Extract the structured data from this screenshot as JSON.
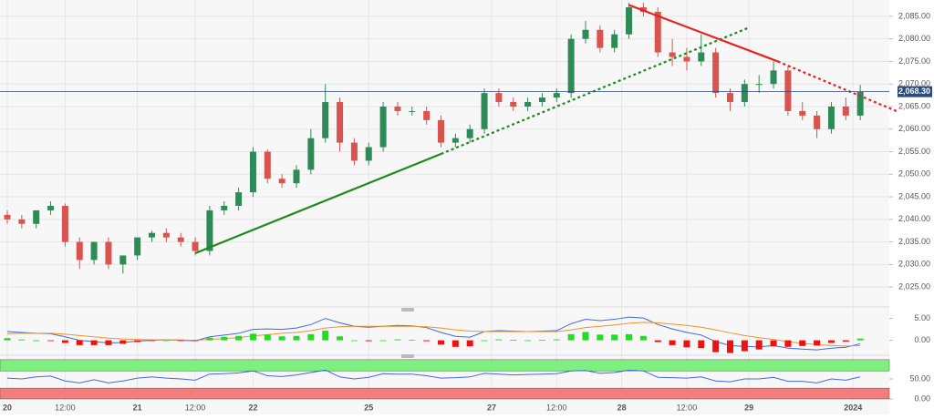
{
  "chart_data": [
    {
      "type": "candlestick",
      "open": [
        2041,
        2040,
        2039,
        2042,
        2043,
        2035,
        2031,
        2035,
        2030,
        2032,
        2036,
        2037,
        2036,
        2035,
        2033,
        2042,
        2043,
        2046,
        2055,
        2049,
        2048,
        2051,
        2058,
        2066,
        2057,
        2053,
        2056,
        2065,
        2064,
        2064,
        2062,
        2057,
        2058,
        2060,
        2068,
        2066,
        2065,
        2066,
        2067,
        2068,
        2080,
        2082,
        2078,
        2081,
        2087,
        2086,
        2077,
        2076,
        2075,
        2077,
        2068,
        2066,
        2070,
        2070,
        2073,
        2064,
        2063,
        2060,
        2065,
        2063
      ],
      "high": [
        2042,
        2041,
        2042,
        2044,
        2043.5,
        2036,
        2035,
        2036,
        2032,
        2036,
        2037.5,
        2038,
        2037,
        2036,
        2043,
        2044,
        2047,
        2056,
        2055.5,
        2050,
        2052,
        2060,
        2070,
        2067,
        2058,
        2057,
        2066,
        2066,
        2065,
        2065,
        2063,
        2059,
        2061,
        2069,
        2069,
        2067,
        2067,
        2068,
        2069,
        2081,
        2084,
        2083,
        2082,
        2088,
        2088,
        2087,
        2080,
        2078,
        2081,
        2078,
        2069,
        2071,
        2072,
        2075,
        2074,
        2066,
        2064,
        2066,
        2067,
        2069.8
      ],
      "low": [
        2039,
        2038,
        2038,
        2041,
        2034,
        2029,
        2030,
        2029,
        2028,
        2031,
        2035,
        2035,
        2034,
        2032,
        2032,
        2041,
        2042,
        2045,
        2048,
        2047,
        2047,
        2050,
        2057,
        2055,
        2052,
        2052,
        2055,
        2063,
        2063,
        2061,
        2056,
        2056,
        2057,
        2059,
        2065,
        2064,
        2064,
        2065,
        2066,
        2067,
        2079,
        2077,
        2077,
        2080,
        2085,
        2076,
        2074,
        2073,
        2074,
        2067,
        2064,
        2065,
        2068,
        2069,
        2063,
        2062,
        2058,
        2059,
        2062,
        2062
      ],
      "close": [
        2040,
        2039,
        2042,
        2043,
        2035,
        2031,
        2035,
        2030,
        2032,
        2036,
        2037,
        2036,
        2035,
        2033,
        2042,
        2043,
        2046,
        2055,
        2049,
        2048,
        2051,
        2058,
        2066,
        2057,
        2053,
        2056,
        2065,
        2064,
        2064,
        2062,
        2057,
        2058,
        2060,
        2068,
        2066,
        2065,
        2066,
        2067,
        2068,
        2080,
        2082,
        2078,
        2081,
        2087,
        2086,
        2077,
        2076,
        2075,
        2077,
        2068,
        2066,
        2070,
        2070,
        2073,
        2064,
        2063,
        2060,
        2065,
        2063,
        2068.3
      ],
      "up_color": "#2e8b57",
      "down_color": "#d9534f",
      "ylim": [
        2022,
        2087
      ],
      "yticks": [
        {
          "value": 2025,
          "label": "2,025.00"
        },
        {
          "value": 2030,
          "label": "2,030.00"
        },
        {
          "value": 2035,
          "label": "2,035.00"
        },
        {
          "value": 2040,
          "label": "2,040.00"
        },
        {
          "value": 2045,
          "label": "2,045.00"
        },
        {
          "value": 2050,
          "label": "2,050.00"
        },
        {
          "value": 2055,
          "label": "2,055.00"
        },
        {
          "value": 2060,
          "label": "2,060.00"
        },
        {
          "value": 2065,
          "label": "2,065.00"
        },
        {
          "value": 2070,
          "label": "2,070.00"
        },
        {
          "value": 2075,
          "label": "2,075.00"
        },
        {
          "value": 2080,
          "label": "2,080.00"
        },
        {
          "value": 2085,
          "label": "2,085.00"
        }
      ],
      "xticks": [
        {
          "value": 0,
          "label": "20"
        },
        {
          "value": 4,
          "label": "12:00"
        },
        {
          "value": 9,
          "label": "21"
        },
        {
          "value": 13,
          "label": "12:00"
        },
        {
          "value": 17,
          "label": "22"
        },
        {
          "value": 25,
          "label": "25"
        },
        {
          "value": 33.5,
          "label": "27"
        },
        {
          "value": 38,
          "label": "12:00"
        },
        {
          "value": 42.5,
          "label": "28"
        },
        {
          "value": 47,
          "label": "12:00"
        },
        {
          "value": 51.3,
          "label": "29"
        },
        {
          "value": 58.5,
          "label": "2024"
        }
      ],
      "last_price": {
        "value": 2068.3,
        "label": "2,068.30",
        "color": "#2b4a7e"
      },
      "trendlines": [
        {
          "color": "#1e8a1e",
          "dashed": false,
          "points": [
            [
              13,
              2032.5
            ],
            [
              30,
              2054.5
            ]
          ]
        },
        {
          "color": "#1e8a1e",
          "dashed": true,
          "points": [
            [
              30,
              2054.5
            ],
            [
              51.3,
              2082.5
            ]
          ]
        },
        {
          "color": "#e82020",
          "dashed": false,
          "points": [
            [
              43,
              2087.5
            ],
            [
              53.3,
              2075
            ]
          ]
        },
        {
          "color": "#e82020",
          "dashed": true,
          "points": [
            [
              53.3,
              2075
            ],
            [
              61.5,
              2064
            ]
          ]
        }
      ],
      "grid": true
    },
    {
      "type": "macd",
      "ylim": [
        -3,
        7
      ],
      "yticks": [
        {
          "value": 5,
          "label": "5.00"
        },
        {
          "value": 0,
          "label": "0.00"
        }
      ],
      "series": [
        {
          "kind": "line",
          "color": "#4169e1",
          "values": [
            2,
            1.8,
            1.6,
            1.5,
            0.8,
            0,
            -0.3,
            -0.6,
            -0.5,
            -0.2,
            0,
            0.1,
            0,
            -0.1,
            0.8,
            1.2,
            1.6,
            2.5,
            2.6,
            2.5,
            2.8,
            3.6,
            5,
            4,
            3.2,
            3,
            3.2,
            3.4,
            3.3,
            2.9,
            1.8,
            0.9,
            0.7,
            2,
            2.2,
            2.1,
            2,
            2.1,
            2.2,
            3.8,
            4.8,
            4.5,
            4.8,
            5.3,
            5.1,
            3.6,
            2.6,
            1.8,
            1.2,
            -0.3,
            -1.2,
            -1.4,
            -1.5,
            -1.2,
            -1.8,
            -2,
            -2.2,
            -1.8,
            -1.6,
            -0.8
          ]
        },
        {
          "kind": "line",
          "color": "#f0932b",
          "values": [
            1.5,
            1.6,
            1.6,
            1.6,
            1.4,
            1.1,
            0.8,
            0.5,
            0.3,
            0.2,
            0.1,
            0.1,
            0.1,
            0,
            0.2,
            0.4,
            0.6,
            1,
            1.3,
            1.6,
            1.8,
            2.2,
            2.8,
            3.1,
            3.2,
            3.2,
            3.2,
            3.2,
            3.2,
            3.1,
            2.8,
            2.4,
            2.1,
            2,
            2,
            2,
            2,
            2,
            2,
            2.4,
            2.9,
            3.2,
            3.5,
            3.9,
            4.1,
            4,
            3.7,
            3.4,
            3,
            2.4,
            1.7,
            1.1,
            0.6,
            0.2,
            -0.3,
            -0.7,
            -1,
            -1.2,
            -1.3,
            -1.2
          ]
        },
        {
          "kind": "bar",
          "color": "#22dd22",
          "negative_color": "#ee1111",
          "values": [
            0.5,
            0.2,
            0,
            -0.1,
            -0.6,
            -1.1,
            -1.1,
            -1.1,
            -0.8,
            -0.4,
            -0.1,
            0,
            -0.1,
            -0.1,
            0.6,
            0.8,
            1,
            1.5,
            1.3,
            0.9,
            1,
            1.4,
            2.2,
            0.9,
            0,
            -0.2,
            0,
            0.2,
            0.1,
            -0.2,
            -1,
            -1.5,
            -1.4,
            0,
            0.2,
            0.1,
            0,
            0.1,
            0.2,
            1.4,
            1.9,
            1.3,
            1.3,
            1.4,
            1,
            -0.4,
            -1.1,
            -1.6,
            -1.8,
            -2.7,
            -2.9,
            -2.5,
            -2.1,
            -1.4,
            -1.5,
            -1.3,
            -1.2,
            -0.6,
            -0.3,
            0.4
          ]
        }
      ]
    },
    {
      "type": "rsi",
      "ylim": [
        0,
        100
      ],
      "yticks": [
        {
          "value": 50,
          "label": "50.00"
        },
        {
          "value": 0,
          "label": "0.00"
        }
      ],
      "zones": [
        {
          "from": 70,
          "to": 98,
          "color": "#7ff07f"
        },
        {
          "from": 0,
          "to": 27,
          "color": "#f47c7c"
        }
      ],
      "series": [
        {
          "kind": "line",
          "color": "#4169e1",
          "values": [
            52,
            50,
            55,
            57,
            45,
            40,
            48,
            40,
            45,
            52,
            55,
            52,
            50,
            47,
            62,
            63,
            65,
            70,
            58,
            56,
            60,
            66,
            72,
            55,
            50,
            54,
            63,
            62,
            62,
            58,
            52,
            53,
            55,
            64,
            62,
            60,
            61,
            62,
            63,
            70,
            71,
            64,
            66,
            72,
            70,
            54,
            53,
            52,
            55,
            45,
            43,
            50,
            50,
            54,
            44,
            44,
            40,
            50,
            47,
            55
          ]
        }
      ]
    }
  ]
}
